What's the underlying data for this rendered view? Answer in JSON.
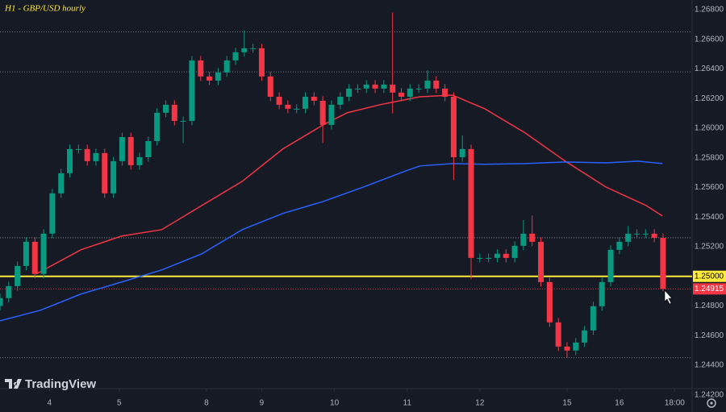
{
  "chart_data": {
    "type": "candlestick",
    "title": "H1 - GBP/USD hourly",
    "logo": "TradingView",
    "up_color": "#089981",
    "down_color": "#f23645",
    "xlim": [
      0,
      238
    ],
    "ylim": [
      1.24242,
      1.26865
    ],
    "xticks": [
      {
        "value": 17,
        "label": "4"
      },
      {
        "value": 41,
        "label": "5"
      },
      {
        "value": 71,
        "label": "8"
      },
      {
        "value": 90,
        "label": "9"
      },
      {
        "value": 115,
        "label": "10"
      },
      {
        "value": 140,
        "label": "11"
      },
      {
        "value": 165,
        "label": "12"
      },
      {
        "value": 195,
        "label": "15"
      },
      {
        "value": 213,
        "label": "16"
      },
      {
        "value": 232,
        "label": "18:00"
      }
    ],
    "yticks": [
      {
        "value": 1.242,
        "label": "1.24200"
      },
      {
        "value": 1.244,
        "label": "1.24400"
      },
      {
        "value": 1.246,
        "label": "1.24600"
      },
      {
        "value": 1.248,
        "label": "1.24800"
      },
      {
        "value": 1.25,
        "label": "1.25000"
      },
      {
        "value": 1.252,
        "label": "1.25200"
      },
      {
        "value": 1.254,
        "label": "1.25400"
      },
      {
        "value": 1.256,
        "label": "1.25600"
      },
      {
        "value": 1.258,
        "label": "1.25800"
      },
      {
        "value": 1.26,
        "label": "1.26000"
      },
      {
        "value": 1.262,
        "label": "1.26200"
      },
      {
        "value": 1.264,
        "label": "1.26400"
      },
      {
        "value": 1.266,
        "label": "1.26600"
      },
      {
        "value": 1.268,
        "label": "1.26800"
      }
    ],
    "x": [
      0,
      3,
      6,
      9,
      12,
      15,
      18,
      21,
      24,
      27,
      30,
      33,
      36,
      39,
      42,
      45,
      48,
      51,
      54,
      57,
      60,
      63,
      66,
      69,
      72,
      75,
      78,
      81,
      84,
      87,
      90,
      93,
      96,
      99,
      102,
      105,
      108,
      111,
      114,
      117,
      120,
      123,
      126,
      129,
      132,
      135,
      138,
      141,
      144,
      147,
      150,
      153,
      156,
      159,
      162,
      165,
      168,
      171,
      174,
      177,
      180,
      183,
      186,
      189,
      192,
      195,
      198,
      201,
      204,
      207,
      210,
      213,
      216,
      219,
      222,
      225,
      228
    ],
    "open": [
      1.248,
      1.24853,
      1.24934,
      1.2507,
      1.25233,
      1.25016,
      1.25288,
      1.2556,
      1.25696,
      1.25859,
      1.25859,
      1.25777,
      1.25832,
      1.2556,
      1.25777,
      1.2594,
      1.2575,
      1.25804,
      1.25913,
      1.26104,
      1.26158,
      1.26049,
      1.26049,
      1.26457,
      1.26349,
      1.26321,
      1.26376,
      1.26457,
      1.26512,
      1.26539,
      1.26539,
      1.26349,
      1.26212,
      1.26158,
      1.26131,
      1.26131,
      1.26212,
      1.26185,
      1.26022,
      1.26158,
      1.26212,
      1.26267,
      1.26267,
      1.26294,
      1.26267,
      1.26294,
      1.2624,
      1.26212,
      1.26267,
      1.26267,
      1.26321,
      1.26267,
      1.26212,
      1.25804,
      1.25859,
      1.25124,
      1.25124,
      1.25124,
      1.25152,
      1.25124,
      1.25206,
      1.25288,
      1.25233,
      1.24961,
      1.24689,
      1.24526,
      1.24499,
      1.24553,
      1.24635,
      1.24798,
      1.24961,
      1.25179,
      1.25233,
      1.25288,
      1.25288,
      1.25288,
      1.2526
    ],
    "high": [
      1.24883,
      1.24964,
      1.251,
      1.25263,
      1.25263,
      1.25318,
      1.2559,
      1.25726,
      1.25889,
      1.25889,
      1.25889,
      1.25862,
      1.25862,
      1.25807,
      1.2597,
      1.2597,
      1.25834,
      1.25943,
      1.26134,
      1.26188,
      1.26188,
      1.26079,
      1.26487,
      1.26487,
      1.26379,
      1.26406,
      1.26487,
      1.26542,
      1.2666,
      1.26569,
      1.26569,
      1.26379,
      1.26242,
      1.26188,
      1.26161,
      1.26242,
      1.26242,
      1.26215,
      1.26188,
      1.26242,
      1.26297,
      1.26297,
      1.26324,
      1.26324,
      1.26324,
      1.2678,
      1.2627,
      1.26297,
      1.26297,
      1.2639,
      1.26351,
      1.26297,
      1.26242,
      1.2595,
      1.25889,
      1.25154,
      1.25154,
      1.25182,
      1.25182,
      1.25236,
      1.2538,
      1.2541,
      1.25263,
      1.24991,
      1.24719,
      1.24556,
      1.24583,
      1.24665,
      1.24828,
      1.24991,
      1.25209,
      1.25263,
      1.2534,
      1.25318,
      1.25318,
      1.25318,
      1.2529
    ],
    "low": [
      1.2477,
      1.24823,
      1.24904,
      1.2504,
      1.24986,
      1.24986,
      1.25258,
      1.2553,
      1.25666,
      1.25829,
      1.25747,
      1.25747,
      1.2553,
      1.2553,
      1.25747,
      1.2572,
      1.2572,
      1.25774,
      1.25883,
      1.26074,
      1.26019,
      1.259,
      1.26019,
      1.26319,
      1.26291,
      1.26291,
      1.26346,
      1.26427,
      1.26482,
      1.26509,
      1.26319,
      1.26182,
      1.26128,
      1.26101,
      1.26101,
      1.26101,
      1.26155,
      1.259,
      1.25992,
      1.26128,
      1.26182,
      1.26237,
      1.26237,
      1.26237,
      1.26237,
      1.261,
      1.26182,
      1.26182,
      1.26237,
      1.26237,
      1.26237,
      1.26182,
      1.2565,
      1.25774,
      1.2498,
      1.25094,
      1.25094,
      1.25094,
      1.25094,
      1.25094,
      1.25176,
      1.25203,
      1.24931,
      1.24659,
      1.24496,
      1.2445,
      1.24469,
      1.24523,
      1.24605,
      1.24768,
      1.24931,
      1.25149,
      1.25203,
      1.25258,
      1.25258,
      1.2523,
      1.249
    ],
    "close": [
      1.24853,
      1.24934,
      1.2507,
      1.25233,
      1.25016,
      1.25288,
      1.2556,
      1.25696,
      1.25859,
      1.25859,
      1.25777,
      1.25832,
      1.2556,
      1.25777,
      1.2594,
      1.2575,
      1.25804,
      1.25913,
      1.26104,
      1.26158,
      1.26049,
      1.26049,
      1.26457,
      1.26349,
      1.26321,
      1.26376,
      1.26457,
      1.26512,
      1.26539,
      1.26539,
      1.26349,
      1.26212,
      1.26158,
      1.26131,
      1.26131,
      1.26212,
      1.26185,
      1.26022,
      1.26158,
      1.26212,
      1.26267,
      1.26267,
      1.26294,
      1.26267,
      1.26294,
      1.2624,
      1.26212,
      1.26267,
      1.26267,
      1.26321,
      1.26267,
      1.26212,
      1.25804,
      1.25859,
      1.25124,
      1.25124,
      1.25124,
      1.25152,
      1.25124,
      1.25206,
      1.25288,
      1.25233,
      1.24961,
      1.24689,
      1.24526,
      1.24499,
      1.24553,
      1.24635,
      1.24798,
      1.24961,
      1.25179,
      1.25233,
      1.25288,
      1.25288,
      1.25288,
      1.2526,
      1.24915
    ],
    "series": [
      {
        "color": "#f23645",
        "x": [
          12.5,
          27.8,
          41.7,
          55.6,
          69.4,
          83.3,
          97.2,
          111.1,
          119.4,
          130.6,
          144.4,
          155.6,
          166.7,
          180.6,
          194.4,
          208.3,
          222.2,
          227.8
        ],
        "values": [
          1.25016,
          1.25179,
          1.25271,
          1.25315,
          1.25478,
          1.25641,
          1.25859,
          1.26022,
          1.26104,
          1.26158,
          1.26212,
          1.26223,
          1.26131,
          1.25968,
          1.25777,
          1.25603,
          1.25478,
          1.25407
        ]
      },
      {
        "color": "#2962ff",
        "x": [
          0,
          13.9,
          27.8,
          41.7,
          55.6,
          69.4,
          83.3,
          97.2,
          111.1,
          125,
          138.9,
          144.4,
          155.6,
          166.7,
          180.6,
          194.4,
          208.3,
          219.4,
          227.8
        ],
        "values": [
          1.247,
          1.24771,
          1.2488,
          1.24961,
          1.25043,
          1.25152,
          1.25315,
          1.25424,
          1.25505,
          1.25603,
          1.25707,
          1.25745,
          1.25761,
          1.25756,
          1.25761,
          1.25772,
          1.25766,
          1.25777,
          1.25761
        ]
      }
    ],
    "hlines": [
      1.2665,
      1.2638,
      1.2526,
      1.2445
    ],
    "key_level": {
      "value": 1.25,
      "label": "1.25000",
      "color": "#ffeb3b"
    },
    "last_price": {
      "value": 1.24915,
      "color": "#f23645"
    }
  }
}
